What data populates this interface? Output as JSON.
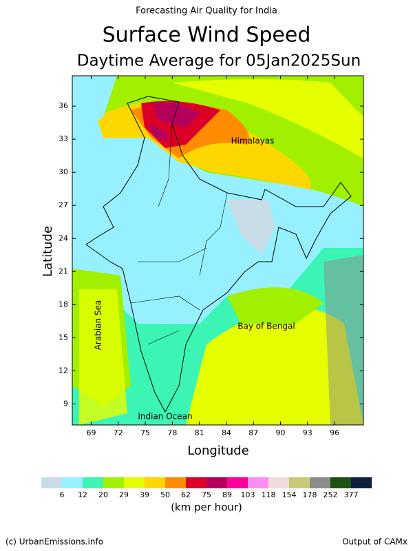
{
  "header": "Forecasting Air Quality for India",
  "title": "Surface Wind Speed",
  "subtitle": "Daytime Average for 05Jan2025Sun",
  "map": {
    "xlabel": "Longitude",
    "ylabel": "Latitude",
    "xlim": [
      66.9,
      99.2
    ],
    "ylim": [
      7.1,
      38.75
    ],
    "xticks": [
      69,
      72,
      75,
      78,
      81,
      84,
      87,
      90,
      93,
      96
    ],
    "yticks": [
      9,
      12,
      15,
      18,
      21,
      24,
      27,
      30,
      33,
      36
    ],
    "regions": [
      "Himalayas",
      "Arabian Sea",
      "Bay of Bengal",
      "Indian Ocean"
    ]
  },
  "colorbar": {
    "labels": [
      6,
      12,
      20,
      29,
      39,
      50,
      62,
      75,
      89,
      103,
      118,
      154,
      178,
      252,
      377
    ],
    "colors": [
      "#c8dce6",
      "#96f0ff",
      "#3cf5b4",
      "#a0f000",
      "#e6ff00",
      "#ffd700",
      "#ff8c00",
      "#dc0028",
      "#b4005a",
      "#ff00a0",
      "#ff8cf0",
      "#f0dcdc",
      "#c8c878",
      "#8c8c8c",
      "#1e5014",
      "#0f1e3c"
    ],
    "unit": "(km per hour)"
  },
  "footer": {
    "left": "(c) UrbanEmissions.info",
    "right": "Output of CAMx"
  }
}
